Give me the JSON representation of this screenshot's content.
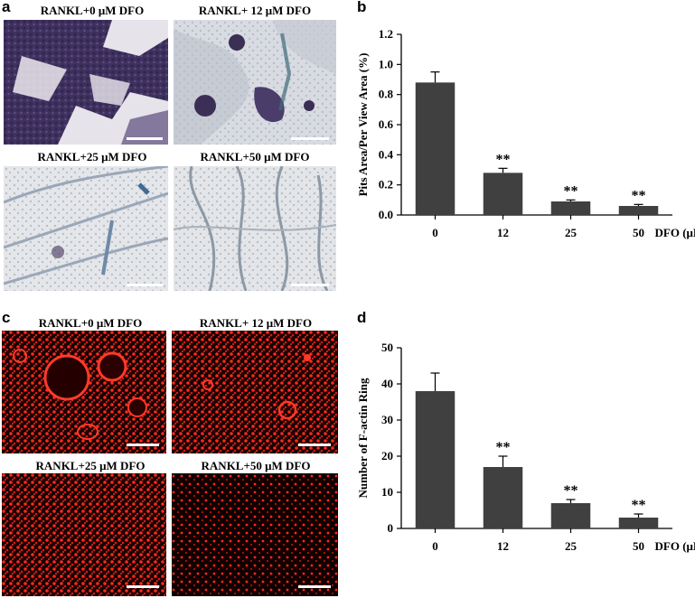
{
  "panels": {
    "a": {
      "letter": "a",
      "images": [
        {
          "label": "RANKL+0 μM DFO"
        },
        {
          "label": "RANKL+ 12 μM DFO"
        },
        {
          "label": "RANKL+25 μM DFO"
        },
        {
          "label": "RANKL+50 μM DFO"
        }
      ]
    },
    "b": {
      "letter": "b"
    },
    "c": {
      "letter": "c",
      "images": [
        {
          "label": "RANKL+0 μM DFO"
        },
        {
          "label": "RANKL+ 12 μM DFO"
        },
        {
          "label": "RANKL+25 μM DFO"
        },
        {
          "label": "RANKL+50 μM DFO"
        }
      ]
    },
    "d": {
      "letter": "d"
    }
  },
  "colors": {
    "bar": "#404040",
    "pit_stain": "#4a3a66",
    "faint_stain": "#c9cfd6",
    "fluor_red": "#ff2020"
  },
  "chart_data": [
    {
      "type": "bar",
      "categories": [
        "0",
        "12",
        "25",
        "50"
      ],
      "values": [
        0.88,
        0.28,
        0.09,
        0.06
      ],
      "errors": [
        0.07,
        0.03,
        0.01,
        0.01
      ],
      "significance": [
        "",
        "**",
        "**",
        "**"
      ],
      "title": "",
      "xlabel": "DFO (μM)",
      "ylabel": "Pits Area/Per View Area (%)",
      "ylim": [
        0,
        1.2
      ],
      "yticks": [
        "0.0",
        "0.2",
        "0.4",
        "0.6",
        "0.8",
        "1.0",
        "1.2"
      ],
      "grid": false
    },
    {
      "type": "bar",
      "categories": [
        "0",
        "12",
        "25",
        "50"
      ],
      "values": [
        38,
        17,
        7,
        3
      ],
      "errors": [
        5,
        3,
        1,
        1
      ],
      "significance": [
        "",
        "**",
        "**",
        "**"
      ],
      "title": "",
      "xlabel": "DFO (μM)",
      "ylabel": "Number of F-actin Ring",
      "ylim": [
        0,
        50
      ],
      "yticks": [
        "0",
        "10",
        "20",
        "30",
        "40",
        "50"
      ],
      "grid": false
    }
  ]
}
